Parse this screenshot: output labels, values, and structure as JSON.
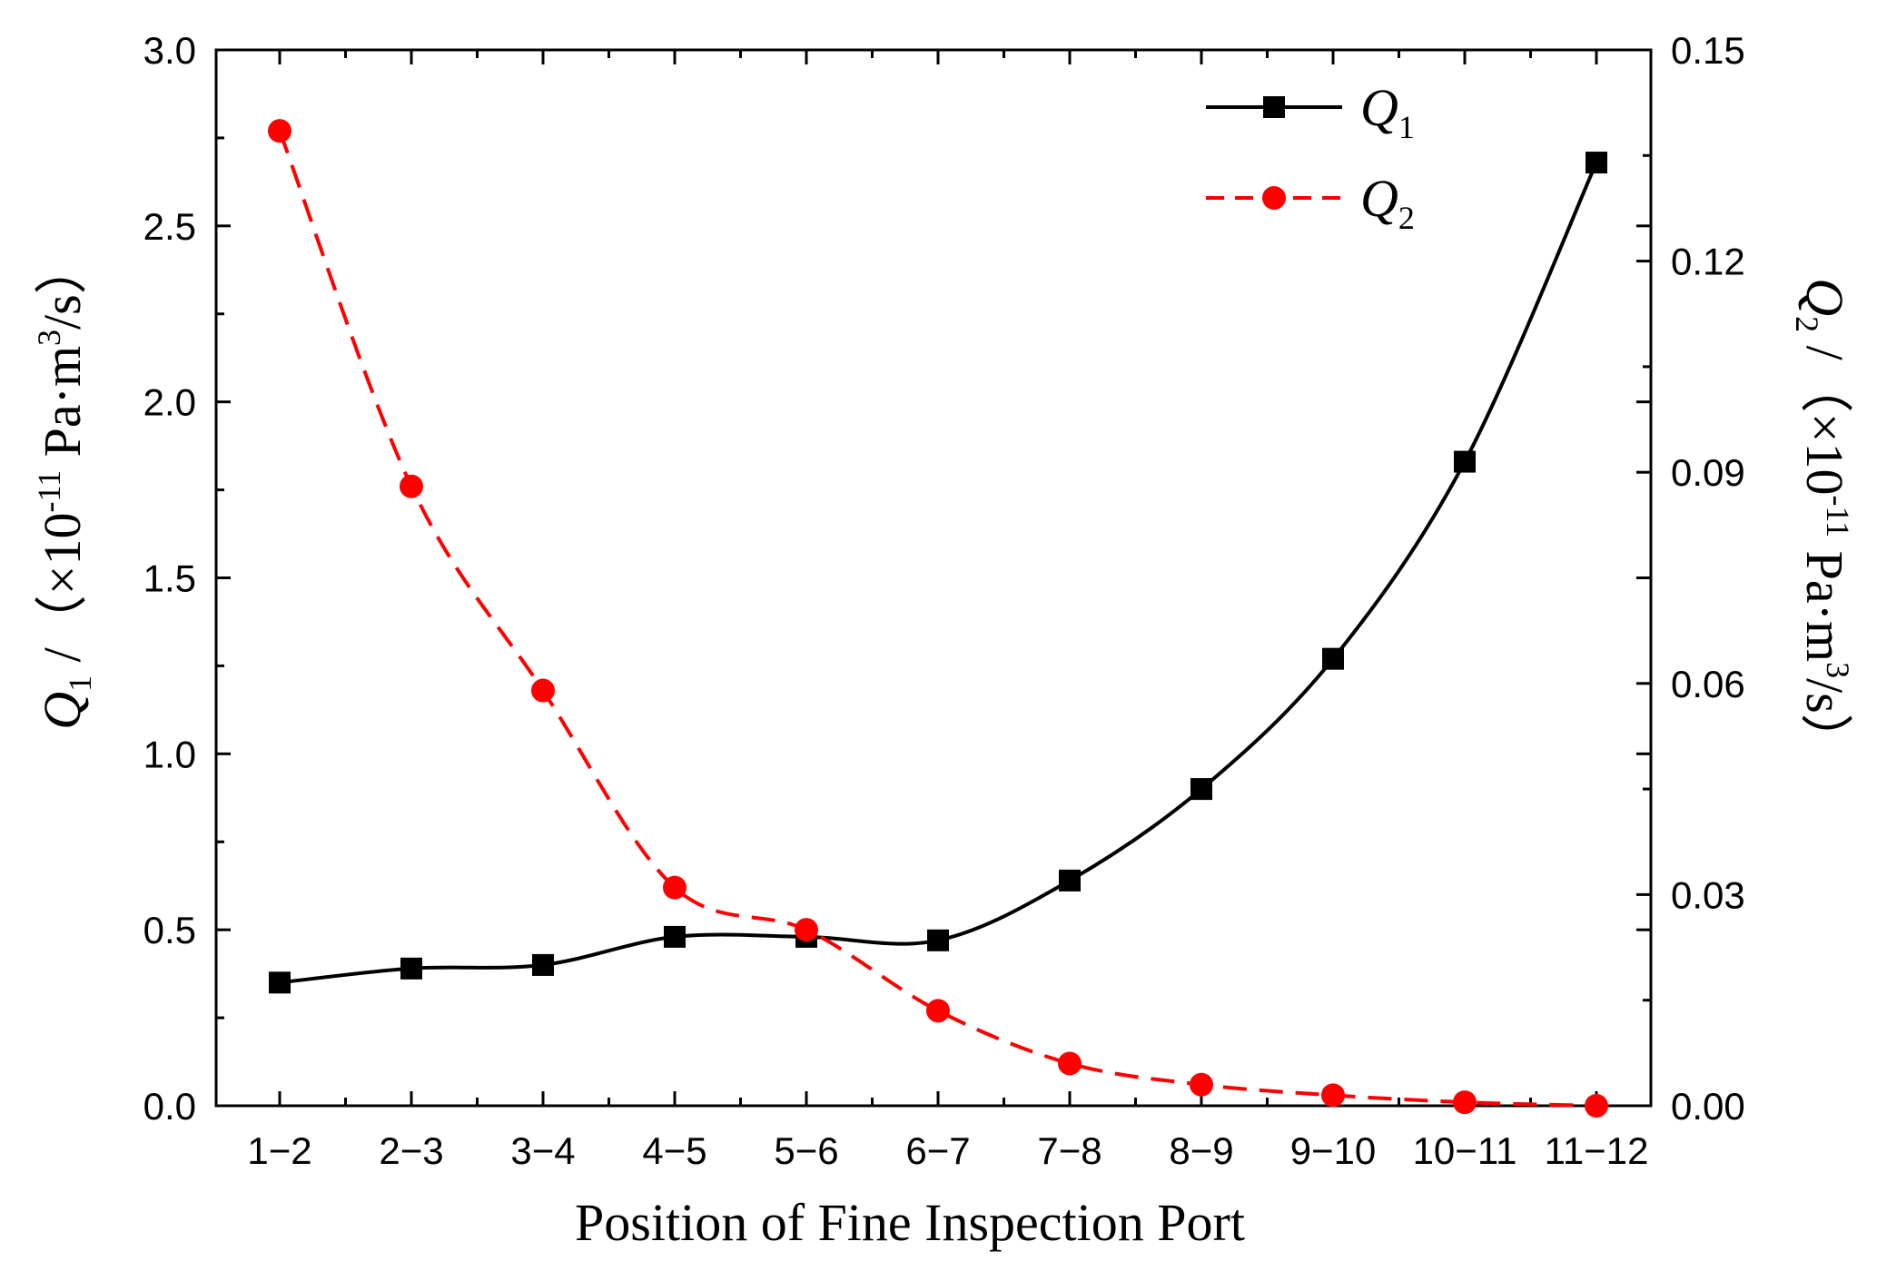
{
  "chart_data": {
    "type": "line",
    "xlabel": "Position of Fine Inspection Port",
    "categories": [
      "1−2",
      "2−3",
      "3−4",
      "4−5",
      "5−6",
      "6−7",
      "7−8",
      "8−9",
      "9−10",
      "10−11",
      "11−12"
    ],
    "y_left": {
      "label_symbol": "Q",
      "label_subscript": "1",
      "label_unit_pre": " /（×10",
      "label_unit_exp": "-11",
      "label_unit_mid": " Pa·m",
      "label_unit_exp2": "3",
      "label_unit_post": "/s）",
      "lim": [
        0,
        3.0
      ],
      "ticks": [
        "0.0",
        "0.5",
        "1.0",
        "1.5",
        "2.0",
        "2.5",
        "3.0"
      ]
    },
    "y_right": {
      "label_symbol": "Q",
      "label_subscript": "2",
      "label_unit_pre": " /（×10",
      "label_unit_exp": "-11",
      "label_unit_mid": " Pa·m",
      "label_unit_exp2": "3",
      "label_unit_post": "/s）",
      "lim": [
        0,
        0.15
      ],
      "ticks": [
        "0.00",
        "0.03",
        "0.06",
        "0.09",
        "0.12",
        "0.15"
      ]
    },
    "series": [
      {
        "name": "Q1",
        "legend_symbol": "Q",
        "legend_subscript": "1",
        "axis": "left",
        "color": "#000000",
        "line_style": "solid",
        "marker": "square",
        "values": [
          0.35,
          0.39,
          0.4,
          0.48,
          0.48,
          0.47,
          0.64,
          0.9,
          1.27,
          1.83,
          2.68
        ]
      },
      {
        "name": "Q2",
        "legend_symbol": "Q",
        "legend_subscript": "2",
        "axis": "right",
        "color": "#ff0000",
        "line_style": "dashed",
        "marker": "circle",
        "values": [
          0.1385,
          0.088,
          0.059,
          0.031,
          0.025,
          0.0135,
          0.006,
          0.003,
          0.0015,
          0.0005,
          0.0
        ]
      }
    ],
    "legend_position": "top-right"
  }
}
